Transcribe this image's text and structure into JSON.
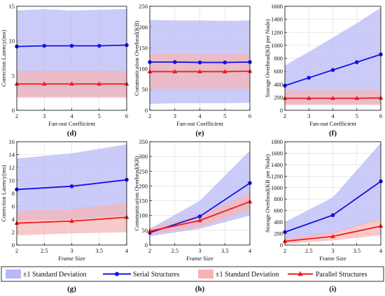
{
  "colors": {
    "serial": "#1212e6",
    "serial_band": "#b9b9f7",
    "parallel": "#ee1c1c",
    "parallel_band": "#f7b3b3",
    "axis": "#000000",
    "grid": "#d9d9d9"
  },
  "legend": {
    "band_serial_label": "±1 Standard Deviation",
    "serial_label": "Serial Structures",
    "band_parallel_label": "±1 Standard Deviation",
    "parallel_label": "Parallel Structures"
  },
  "chart_data": [
    {
      "panel": "(d)",
      "type": "line",
      "grid": true,
      "xlabel": "Fan-out Coefficient",
      "ylabel": "Correction Latency(ms)",
      "x": [
        2,
        3,
        4,
        5,
        6
      ],
      "xlim": [
        2,
        6
      ],
      "ylim": [
        0,
        15
      ],
      "xticks": [
        "2",
        "3",
        "4",
        "5",
        "6"
      ],
      "yticks": [
        "0",
        "5",
        "10",
        "15"
      ],
      "series": [
        {
          "name": "Serial Structures",
          "values": [
            9.2,
            9.3,
            9.3,
            9.3,
            9.4
          ],
          "band_low": [
            2.0,
            2.0,
            2.0,
            2.0,
            2.0
          ],
          "band_high": [
            14.4,
            14.6,
            14.4,
            14.5,
            14.6
          ]
        },
        {
          "name": "Parallel Structures",
          "values": [
            3.8,
            3.8,
            3.8,
            3.8,
            3.8
          ],
          "band_low": [
            1.8,
            1.8,
            1.8,
            1.8,
            1.8
          ],
          "band_high": [
            5.7,
            5.7,
            5.7,
            5.7,
            5.7
          ]
        }
      ]
    },
    {
      "panel": "(e)",
      "type": "line",
      "grid": true,
      "xlabel": "Fan-out Coefficient",
      "ylabel": "Communication Overhead(KB)",
      "x": [
        2,
        3,
        4,
        5,
        6
      ],
      "xlim": [
        2,
        6
      ],
      "ylim": [
        0,
        250
      ],
      "xticks": [
        "2",
        "3",
        "4",
        "5",
        "6"
      ],
      "yticks": [
        "0",
        "50",
        "100",
        "150",
        "200",
        "250"
      ],
      "series": [
        {
          "name": "Serial Structures",
          "values": [
            116,
            116,
            115,
            115,
            116
          ],
          "band_low": [
            15,
            17,
            17,
            17,
            18
          ],
          "band_high": [
            217,
            216,
            216,
            215,
            216
          ]
        },
        {
          "name": "Parallel Structures",
          "values": [
            93,
            93,
            93,
            93,
            94
          ],
          "band_low": [
            52,
            52,
            52,
            52,
            52
          ],
          "band_high": [
            136,
            136,
            136,
            136,
            136
          ]
        }
      ]
    },
    {
      "panel": "(f)",
      "type": "line",
      "grid": true,
      "xlabel": "Fan-out Coefficient",
      "ylabel": "Storage Overhead(KB per Node)",
      "x": [
        2,
        3,
        4,
        5,
        6
      ],
      "xlim": [
        2,
        6
      ],
      "ylim": [
        0,
        1600
      ],
      "xticks": [
        "2",
        "3",
        "4",
        "5",
        "6"
      ],
      "yticks": [
        "0",
        "200",
        "400",
        "600",
        "800",
        "1000",
        "1200",
        "1400",
        "1600"
      ],
      "series": [
        {
          "name": "Serial Structures",
          "values": [
            380,
            500,
            620,
            740,
            860
          ],
          "band_low": [
            100,
            100,
            100,
            100,
            100
          ],
          "band_high": [
            690,
            900,
            1120,
            1340,
            1580
          ]
        },
        {
          "name": "Parallel Structures",
          "values": [
            185,
            185,
            185,
            185,
            190
          ],
          "band_low": [
            80,
            80,
            80,
            80,
            80
          ],
          "band_high": [
            310,
            310,
            310,
            310,
            310
          ]
        }
      ]
    },
    {
      "panel": "(g)",
      "type": "line",
      "grid": true,
      "xlabel": "Frame Size",
      "ylabel": "Correction Latency(ms)",
      "x": [
        2,
        3,
        4
      ],
      "xlim": [
        2,
        4
      ],
      "ylim": [
        0,
        16
      ],
      "xticks": [
        "2",
        "2.5",
        "3",
        "3.5",
        "4"
      ],
      "yticks": [
        "0",
        "2",
        "4",
        "6",
        "8",
        "10",
        "12",
        "14",
        "16"
      ],
      "series": [
        {
          "name": "Serial Structures",
          "values": [
            8.6,
            9.1,
            10.1
          ],
          "band_low": [
            3.8,
            4.0,
            4.5
          ],
          "band_high": [
            13.4,
            14.2,
            15.6
          ]
        },
        {
          "name": "Parallel Structures",
          "values": [
            3.4,
            3.7,
            4.3
          ],
          "band_low": [
            1.5,
            1.8,
            2.0
          ],
          "band_high": [
            5.3,
            5.6,
            6.5
          ]
        }
      ]
    },
    {
      "panel": "(h)",
      "type": "line",
      "grid": true,
      "xlabel": "Frame Size",
      "ylabel": "Communication Overhead(KB)",
      "x": [
        2,
        3,
        4
      ],
      "xlim": [
        2,
        4
      ],
      "ylim": [
        0,
        350
      ],
      "xticks": [
        "2",
        "2.5",
        "3",
        "3.5",
        "4"
      ],
      "yticks": [
        "0",
        "50",
        "100",
        "150",
        "200",
        "250",
        "300",
        "350"
      ],
      "series": [
        {
          "name": "Serial Structures",
          "values": [
            42,
            97,
            210
          ],
          "band_low": [
            30,
            55,
            100
          ],
          "band_high": [
            55,
            150,
            320
          ]
        },
        {
          "name": "Parallel Structures",
          "values": [
            47,
            83,
            147
          ],
          "band_low": [
            35,
            62,
            118
          ],
          "band_high": [
            58,
            103,
            177
          ]
        }
      ]
    },
    {
      "panel": "(i)",
      "type": "line",
      "grid": true,
      "xlabel": "Frame Size",
      "ylabel": "Storage Overhead(KB per Node)",
      "x": [
        2,
        3,
        4
      ],
      "xlim": [
        2,
        4
      ],
      "ylim": [
        0,
        1800
      ],
      "xticks": [
        "2",
        "2.5",
        "3",
        "3.5",
        "4"
      ],
      "yticks": [
        "0",
        "200",
        "400",
        "600",
        "800",
        "1000",
        "1200",
        "1400",
        "1600",
        "1800"
      ],
      "series": [
        {
          "name": "Serial Structures",
          "values": [
            225,
            520,
            1110
          ],
          "band_low": [
            60,
            200,
            450
          ],
          "band_high": [
            400,
            830,
            1780
          ]
        },
        {
          "name": "Parallel Structures",
          "values": [
            65,
            150,
            330
          ],
          "band_low": [
            20,
            80,
            170
          ],
          "band_high": [
            110,
            230,
            460
          ]
        }
      ]
    }
  ]
}
